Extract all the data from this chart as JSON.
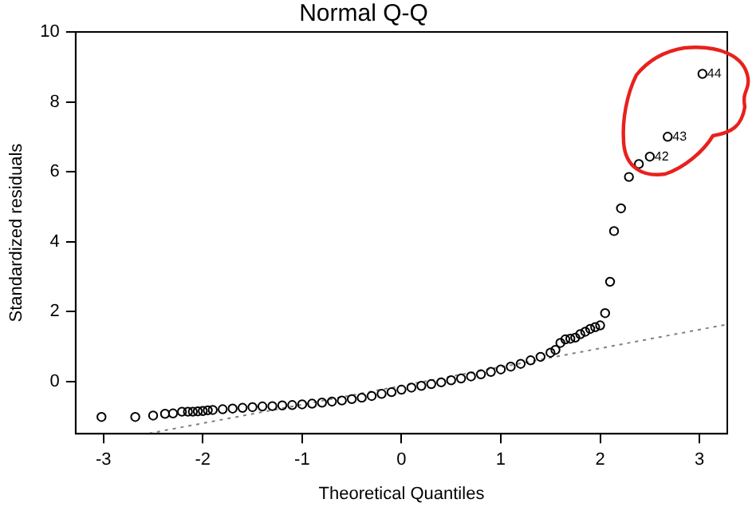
{
  "chart_data": {
    "type": "scatter",
    "title": "Normal Q-Q",
    "xlabel": "Theoretical Quantiles",
    "ylabel": "Standardized residuals",
    "xlim": [
      -3.28,
      3.28
    ],
    "ylim": [
      -1.5,
      10
    ],
    "xticks": [
      -3,
      -2,
      -1,
      0,
      1,
      2,
      3
    ],
    "yticks": [
      0,
      2,
      4,
      6,
      8,
      10
    ],
    "marker": "circle",
    "annotations": [
      {
        "text": "44",
        "x": 3.03,
        "y": 8.8
      },
      {
        "text": "43",
        "x": 2.68,
        "y": 7.0
      },
      {
        "text": "42",
        "x": 2.5,
        "y": 6.43
      }
    ],
    "series": [
      {
        "color": "#000000",
        "x": [
          -3.02,
          -2.68,
          -2.5,
          -2.38,
          -2.3,
          -2.21,
          -2.15,
          -2.1,
          -2.05,
          -2.0,
          -1.95,
          -1.9,
          -1.8,
          -1.7,
          -1.6,
          -1.5,
          -1.4,
          -1.3,
          -1.2,
          -1.1,
          -1.0,
          -0.9,
          -0.8,
          -0.7,
          -0.6,
          -0.5,
          -0.4,
          -0.3,
          -0.2,
          -0.1,
          0,
          0.1,
          0.2,
          0.3,
          0.4,
          0.5,
          0.6,
          0.7,
          0.8,
          0.9,
          1.0,
          1.1,
          1.2,
          1.3,
          1.4,
          1.5,
          1.55,
          1.6,
          1.65,
          1.7,
          1.75,
          1.8,
          1.85,
          1.9,
          1.95,
          2.0,
          2.05,
          2.1,
          2.14,
          2.21,
          2.29,
          2.39,
          2.5,
          2.68,
          3.03
        ],
        "values": [
          -1.02,
          -1.02,
          -0.98,
          -0.93,
          -0.92,
          -0.87,
          -0.87,
          -0.87,
          -0.86,
          -0.85,
          -0.83,
          -0.82,
          -0.8,
          -0.78,
          -0.76,
          -0.74,
          -0.72,
          -0.71,
          -0.69,
          -0.68,
          -0.66,
          -0.64,
          -0.61,
          -0.58,
          -0.55,
          -0.51,
          -0.47,
          -0.42,
          -0.36,
          -0.31,
          -0.24,
          -0.18,
          -0.13,
          -0.08,
          -0.03,
          0.03,
          0.08,
          0.14,
          0.2,
          0.27,
          0.34,
          0.42,
          0.5,
          0.6,
          0.7,
          0.82,
          0.9,
          1.1,
          1.2,
          1.22,
          1.25,
          1.35,
          1.42,
          1.5,
          1.55,
          1.6,
          1.95,
          2.85,
          4.3,
          4.95,
          5.85,
          6.22,
          6.43,
          7.0,
          8.8
        ]
      },
      {
        "type": "line",
        "color": "#808080",
        "line_style": "dotted",
        "marker": "none",
        "x": [
          -2.54,
          3.28
        ],
        "values": [
          -1.49,
          1.63
        ]
      }
    ]
  }
}
